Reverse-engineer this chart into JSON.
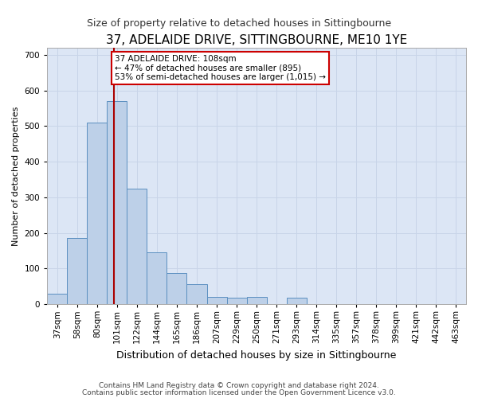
{
  "title": "37, ADELAIDE DRIVE, SITTINGBOURNE, ME10 1YE",
  "subtitle": "Size of property relative to detached houses in Sittingbourne",
  "xlabel": "Distribution of detached houses by size in Sittingbourne",
  "ylabel": "Number of detached properties",
  "footnote1": "Contains HM Land Registry data © Crown copyright and database right 2024.",
  "footnote2": "Contains public sector information licensed under the Open Government Licence v3.0.",
  "categories": [
    "37sqm",
    "58sqm",
    "80sqm",
    "101sqm",
    "122sqm",
    "144sqm",
    "165sqm",
    "186sqm",
    "207sqm",
    "229sqm",
    "250sqm",
    "271sqm",
    "293sqm",
    "314sqm",
    "335sqm",
    "357sqm",
    "378sqm",
    "399sqm",
    "421sqm",
    "442sqm",
    "463sqm"
  ],
  "values": [
    30,
    185,
    510,
    570,
    325,
    145,
    88,
    55,
    20,
    17,
    20,
    0,
    17,
    0,
    0,
    0,
    0,
    0,
    0,
    0,
    0
  ],
  "bar_color": "#bdd0e8",
  "bar_edge_color": "#5b8fc0",
  "grid_color": "#c8d4e8",
  "background_color": "#dce6f5",
  "property_line_color": "#aa0000",
  "annotation_text": "37 ADELAIDE DRIVE: 108sqm\n← 47% of detached houses are smaller (895)\n53% of semi-detached houses are larger (1,015) →",
  "annotation_box_color": "#ffffff",
  "annotation_box_edge": "#cc0000",
  "ylim": [
    0,
    720
  ],
  "yticks": [
    0,
    100,
    200,
    300,
    400,
    500,
    600,
    700
  ],
  "title_fontsize": 11,
  "subtitle_fontsize": 9,
  "xlabel_fontsize": 9,
  "ylabel_fontsize": 8,
  "tick_fontsize": 7.5,
  "annot_fontsize": 7.5
}
